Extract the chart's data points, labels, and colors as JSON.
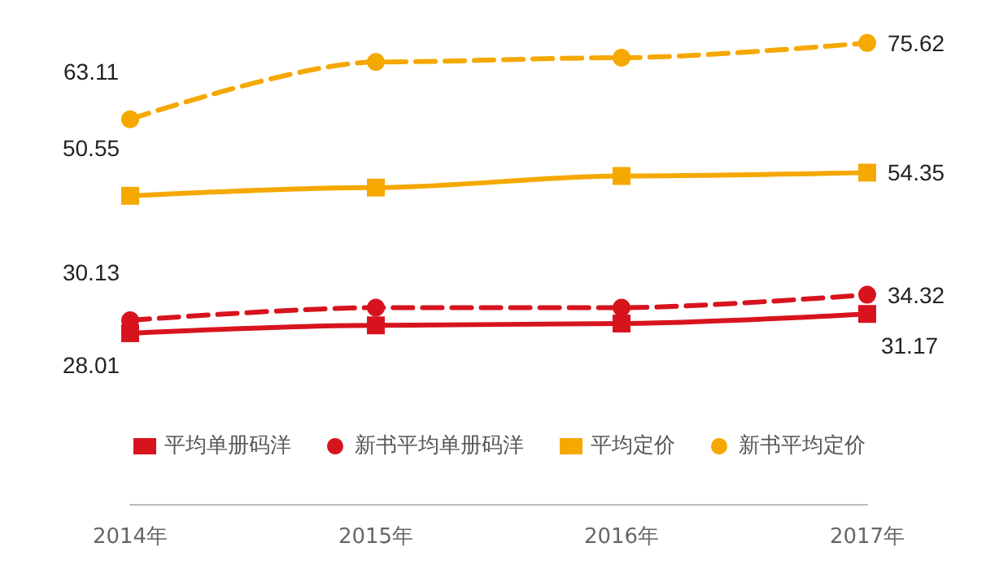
{
  "chart_data": {
    "type": "line",
    "categories": [
      "2014年",
      "2015年",
      "2016年",
      "2017年"
    ],
    "tick_labels": "x",
    "grid": false,
    "legend": "bottom",
    "series": [
      {
        "name": "平均单册码洋",
        "color": "#d7141e",
        "marker": "square",
        "line_style": "solid",
        "values": [
          28.01,
          29.3,
          29.6,
          31.17
        ],
        "value_labels": [
          "28.01",
          null,
          null,
          "31.17"
        ]
      },
      {
        "name": "新书平均单册码洋",
        "color": "#d7141e",
        "marker": "circle",
        "line_style": "dashed",
        "values": [
          30.13,
          32.2,
          32.2,
          34.32
        ],
        "value_labels": [
          "30.13",
          null,
          null,
          "34.32"
        ]
      },
      {
        "name": "平均定价",
        "color": "#f5a800",
        "marker": "square",
        "line_style": "solid",
        "values": [
          50.55,
          51.9,
          53.8,
          54.35
        ],
        "value_labels": [
          "50.55",
          null,
          null,
          "54.35"
        ]
      },
      {
        "name": "新书平均定价",
        "color": "#f5a800",
        "marker": "circle",
        "line_style": "dashed",
        "values": [
          63.11,
          72.5,
          73.2,
          75.62
        ],
        "value_labels": [
          "63.11",
          null,
          null,
          "75.62"
        ]
      }
    ]
  }
}
